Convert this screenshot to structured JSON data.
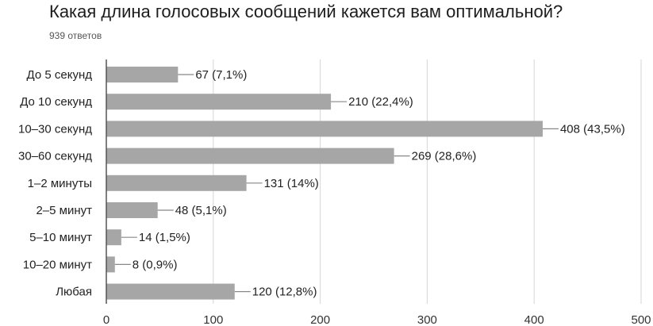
{
  "title": "Какая длина голосовых сообщений кажется вам оптимальной?",
  "subtitle": "939 ответов",
  "colors": {
    "bar": "#a6a6a6",
    "grid": "#d6d6d6",
    "axis": "#555555",
    "leader": "#888888"
  },
  "chart_data": {
    "type": "bar",
    "orientation": "horizontal",
    "categories": [
      "До 5 секунд",
      "До 10 секунд",
      "10–30 секунд",
      "30–60 секунд",
      "1–2 минуты",
      "2–5 минут",
      "5–10 минут",
      "10–20 минут",
      "Любая"
    ],
    "values": [
      67,
      210,
      408,
      269,
      131,
      48,
      14,
      8,
      120
    ],
    "data_labels": [
      "67 (7,1%)",
      "210 (22,4%)",
      "408 (43,5%)",
      "269 (28,6%)",
      "131 (14%)",
      "48 (5,1%)",
      "14 (1,5%)",
      "8 (0,9%)",
      "120 (12,8%)"
    ],
    "xlim": [
      0,
      500
    ],
    "xticks": [
      0,
      100,
      200,
      300,
      400,
      500
    ],
    "grid": true
  }
}
